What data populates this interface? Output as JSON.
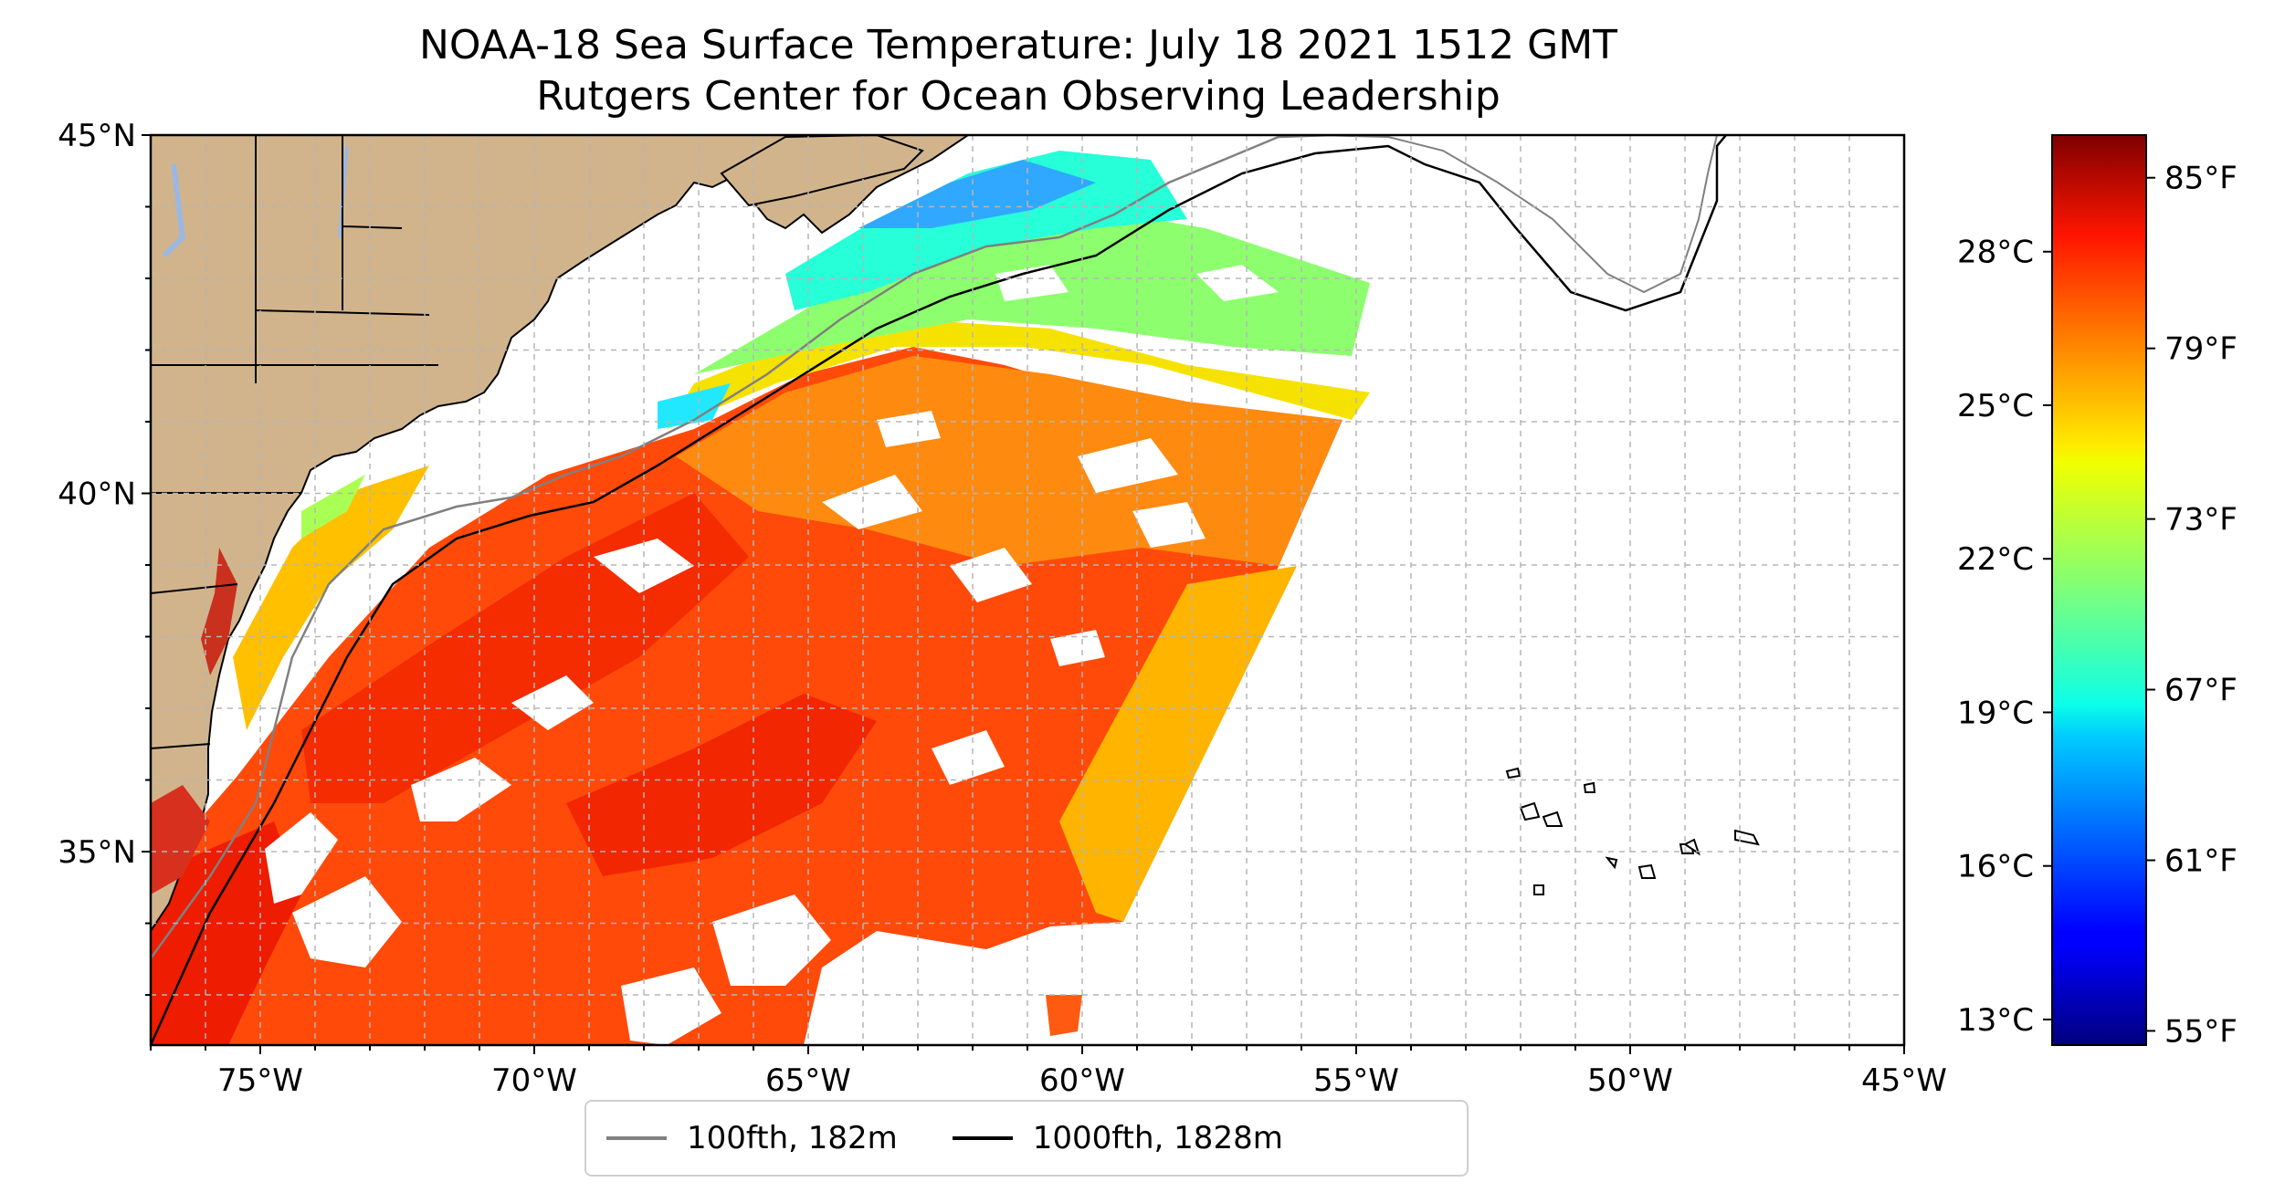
{
  "title": {
    "line1": "NOAA-18 Sea Surface Temperature: July 18 2021 1512 GMT",
    "line2": "Rutgers Center for Ocean Observing Leadership"
  },
  "map": {
    "lon_range": [
      -77,
      -45
    ],
    "lat_range": [
      32.3,
      45
    ],
    "x_ticks": [
      "75°W",
      "70°W",
      "65°W",
      "60°W",
      "55°W",
      "50°W",
      "45°W"
    ],
    "x_tick_values": [
      -75,
      -70,
      -65,
      -60,
      -55,
      -50,
      -45
    ],
    "y_ticks": [
      "45°N",
      "40°N",
      "35°N"
    ],
    "y_tick_values": [
      45,
      40,
      35
    ],
    "gridlines": true,
    "land_color": "#d2b48c",
    "water_color": "#ffffff"
  },
  "colorbar": {
    "colormap": "jet",
    "celsius_ticks": [
      "28°C",
      "25°C",
      "22°C",
      "19°C",
      "16°C",
      "13°C"
    ],
    "celsius_values": [
      28,
      25,
      22,
      19,
      16,
      13
    ],
    "fahrenheit_ticks": [
      "85°F",
      "79°F",
      "73°F",
      "67°F",
      "61°F",
      "55°F"
    ],
    "fahrenheit_values": [
      85,
      79,
      73,
      67,
      61,
      55
    ],
    "range_f": [
      54.5,
      86.5
    ]
  },
  "legend": {
    "items": [
      {
        "label": "100fth, 182m",
        "color": "#808080"
      },
      {
        "label": "1000fth, 1828m",
        "color": "#000000"
      }
    ]
  }
}
